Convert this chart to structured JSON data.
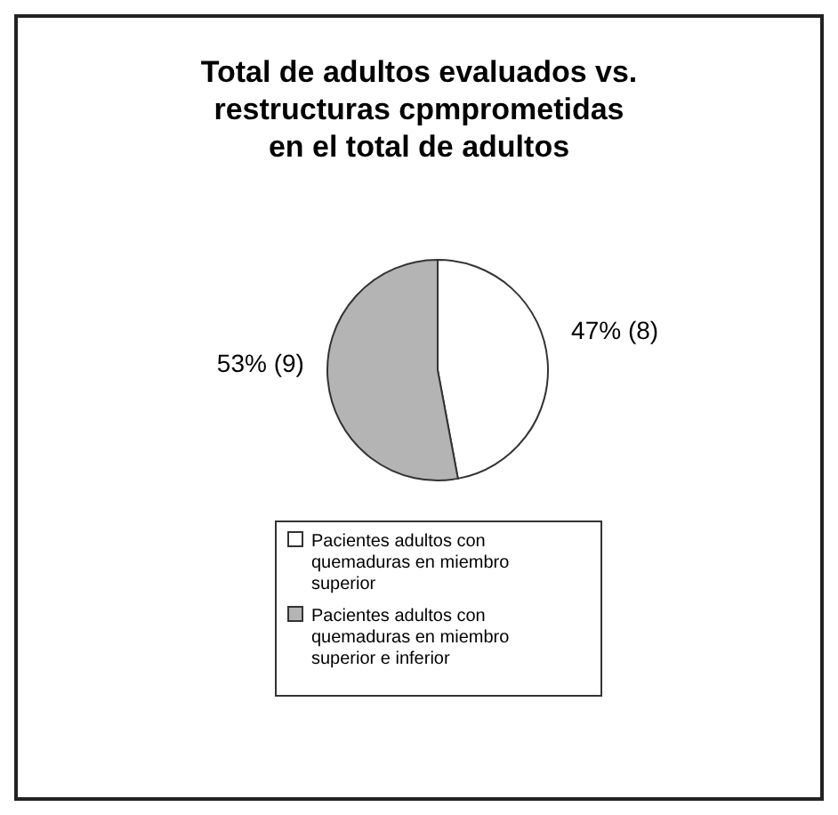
{
  "chart_data": {
    "type": "pie",
    "title": "Total de adultos evaluados vs.\nrestructuras cpmprometidas\nen el total de adultos",
    "categories": [
      "Pacientes adultos con quemaduras en miembro superior",
      "Pacientes adultos con quemaduras en miembro superior e inferior"
    ],
    "values": [
      8,
      9
    ],
    "value_labels": [
      "47% (8)",
      "53% (9)"
    ],
    "colors": [
      "#ffffff",
      "#b4b4b4"
    ],
    "legend": "bottom"
  }
}
